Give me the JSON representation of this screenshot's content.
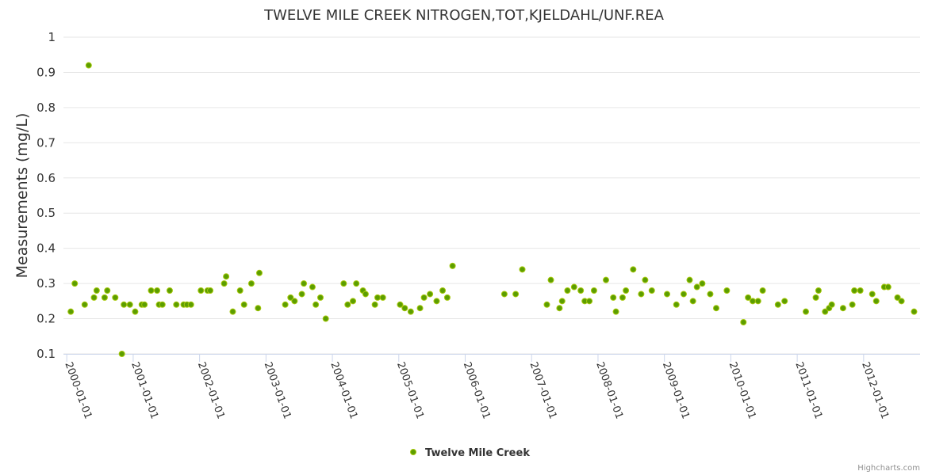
{
  "chart_data": {
    "type": "scatter",
    "title": "TWELVE MILE CREEK NITROGEN,TOT,KJELDAHL/UNF.REA",
    "xlabel": "",
    "ylabel": "Measurements (mg/L)",
    "ylim": [
      0.1,
      1
    ],
    "yticks": [
      "0.1",
      "0.2",
      "0.3",
      "0.4",
      "0.5",
      "0.6",
      "0.7",
      "0.8",
      "0.9",
      "1"
    ],
    "xticks": [
      "2000-01-01",
      "2001-01-01",
      "2002-01-01",
      "2003-01-01",
      "2004-01-01",
      "2005-01-01",
      "2006-01-01",
      "2007-01-01",
      "2008-01-01",
      "2009-01-01",
      "2010-01-01",
      "2011-01-01",
      "2012-01-01"
    ],
    "xlim": [
      1999.95,
      2012.85
    ],
    "grid": "horizontal",
    "legend_position": "bottom-center",
    "credits": "Highcharts.com",
    "series": [
      {
        "name": "Twelve Mile Creek",
        "color": "#5c9e00",
        "points": [
          [
            2000.06,
            0.22
          ],
          [
            2000.12,
            0.3
          ],
          [
            2000.27,
            0.24
          ],
          [
            2000.33,
            0.92
          ],
          [
            2000.41,
            0.26
          ],
          [
            2000.45,
            0.28
          ],
          [
            2000.57,
            0.26
          ],
          [
            2000.61,
            0.28
          ],
          [
            2000.73,
            0.26
          ],
          [
            2000.83,
            0.1
          ],
          [
            2000.86,
            0.24
          ],
          [
            2000.95,
            0.24
          ],
          [
            2001.03,
            0.22
          ],
          [
            2001.13,
            0.24
          ],
          [
            2001.17,
            0.24
          ],
          [
            2001.27,
            0.28
          ],
          [
            2001.36,
            0.28
          ],
          [
            2001.39,
            0.24
          ],
          [
            2001.44,
            0.24
          ],
          [
            2001.55,
            0.28
          ],
          [
            2001.65,
            0.24
          ],
          [
            2001.76,
            0.24
          ],
          [
            2001.81,
            0.24
          ],
          [
            2001.87,
            0.24
          ],
          [
            2002.02,
            0.28
          ],
          [
            2002.12,
            0.28
          ],
          [
            2002.16,
            0.28
          ],
          [
            2002.37,
            0.3
          ],
          [
            2002.4,
            0.32
          ],
          [
            2002.5,
            0.22
          ],
          [
            2002.61,
            0.28
          ],
          [
            2002.67,
            0.24
          ],
          [
            2002.78,
            0.3
          ],
          [
            2002.88,
            0.23
          ],
          [
            2002.9,
            0.33
          ],
          [
            2003.29,
            0.24
          ],
          [
            2003.37,
            0.26
          ],
          [
            2003.43,
            0.25
          ],
          [
            2003.54,
            0.27
          ],
          [
            2003.57,
            0.3
          ],
          [
            2003.7,
            0.29
          ],
          [
            2003.75,
            0.24
          ],
          [
            2003.82,
            0.26
          ],
          [
            2003.9,
            0.2
          ],
          [
            2004.17,
            0.3
          ],
          [
            2004.23,
            0.24
          ],
          [
            2004.31,
            0.25
          ],
          [
            2004.36,
            0.3
          ],
          [
            2004.46,
            0.28
          ],
          [
            2004.5,
            0.27
          ],
          [
            2004.64,
            0.24
          ],
          [
            2004.68,
            0.26
          ],
          [
            2004.76,
            0.26
          ],
          [
            2005.02,
            0.24
          ],
          [
            2005.09,
            0.23
          ],
          [
            2005.18,
            0.22
          ],
          [
            2005.32,
            0.23
          ],
          [
            2005.38,
            0.26
          ],
          [
            2005.47,
            0.27
          ],
          [
            2005.57,
            0.25
          ],
          [
            2005.66,
            0.28
          ],
          [
            2005.73,
            0.26
          ],
          [
            2005.81,
            0.35
          ],
          [
            2006.59,
            0.27
          ],
          [
            2006.76,
            0.27
          ],
          [
            2006.86,
            0.34
          ],
          [
            2007.23,
            0.24
          ],
          [
            2007.29,
            0.31
          ],
          [
            2007.42,
            0.23
          ],
          [
            2007.46,
            0.25
          ],
          [
            2007.54,
            0.28
          ],
          [
            2007.64,
            0.29
          ],
          [
            2007.74,
            0.28
          ],
          [
            2007.8,
            0.25
          ],
          [
            2007.87,
            0.25
          ],
          [
            2007.94,
            0.28
          ],
          [
            2008.12,
            0.31
          ],
          [
            2008.23,
            0.26
          ],
          [
            2008.27,
            0.22
          ],
          [
            2008.37,
            0.26
          ],
          [
            2008.42,
            0.28
          ],
          [
            2008.53,
            0.34
          ],
          [
            2008.65,
            0.27
          ],
          [
            2008.71,
            0.31
          ],
          [
            2008.81,
            0.28
          ],
          [
            2009.04,
            0.27
          ],
          [
            2009.18,
            0.24
          ],
          [
            2009.29,
            0.27
          ],
          [
            2009.38,
            0.31
          ],
          [
            2009.43,
            0.25
          ],
          [
            2009.49,
            0.29
          ],
          [
            2009.57,
            0.3
          ],
          [
            2009.69,
            0.27
          ],
          [
            2009.78,
            0.23
          ],
          [
            2009.94,
            0.28
          ],
          [
            2010.19,
            0.19
          ],
          [
            2010.26,
            0.26
          ],
          [
            2010.33,
            0.25
          ],
          [
            2010.41,
            0.25
          ],
          [
            2010.48,
            0.28
          ],
          [
            2010.71,
            0.24
          ],
          [
            2010.81,
            0.25
          ],
          [
            2011.13,
            0.22
          ],
          [
            2011.28,
            0.26
          ],
          [
            2011.32,
            0.28
          ],
          [
            2011.42,
            0.22
          ],
          [
            2011.48,
            0.23
          ],
          [
            2011.52,
            0.24
          ],
          [
            2011.69,
            0.23
          ],
          [
            2011.83,
            0.24
          ],
          [
            2011.86,
            0.28
          ],
          [
            2011.95,
            0.28
          ],
          [
            2012.13,
            0.27
          ],
          [
            2012.19,
            0.25
          ],
          [
            2012.31,
            0.29
          ],
          [
            2012.37,
            0.29
          ],
          [
            2012.51,
            0.26
          ],
          [
            2012.57,
            0.25
          ],
          [
            2012.76,
            0.22
          ]
        ]
      }
    ]
  }
}
